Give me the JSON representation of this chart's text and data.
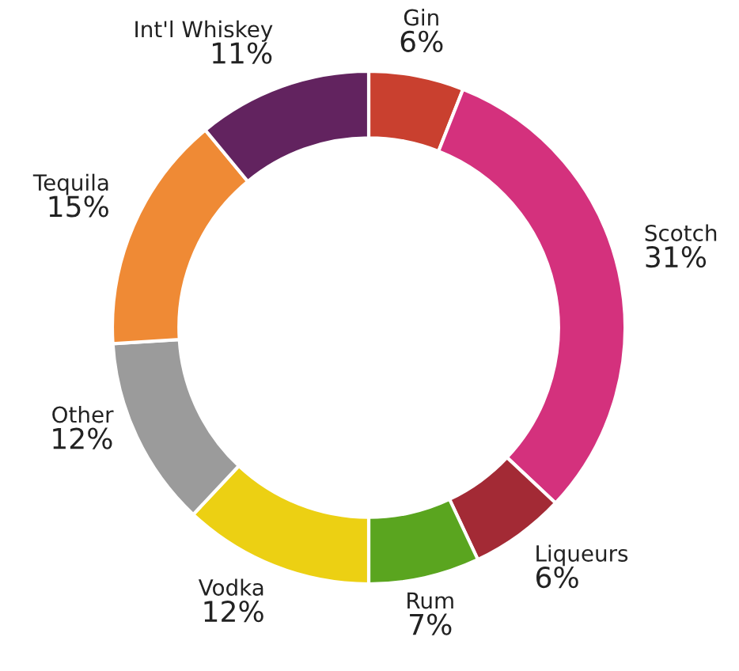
{
  "chart_data": {
    "type": "donut",
    "categories": [
      "Gin",
      "Scotch",
      "Liqueurs",
      "Rum",
      "Vodka",
      "Other",
      "Tequila",
      "Int'l Whiskey"
    ],
    "values": [
      6,
      31,
      6,
      7,
      12,
      12,
      15,
      11
    ],
    "value_labels": [
      "6%",
      "31%",
      "6%",
      "7%",
      "12%",
      "12%",
      "15%",
      "11%"
    ],
    "colors": [
      "#c9402f",
      "#d4317d",
      "#a32a35",
      "#5aa51f",
      "#ecd013",
      "#9b9b9b",
      "#ef8a35",
      "#62235f"
    ],
    "legend": false
  }
}
